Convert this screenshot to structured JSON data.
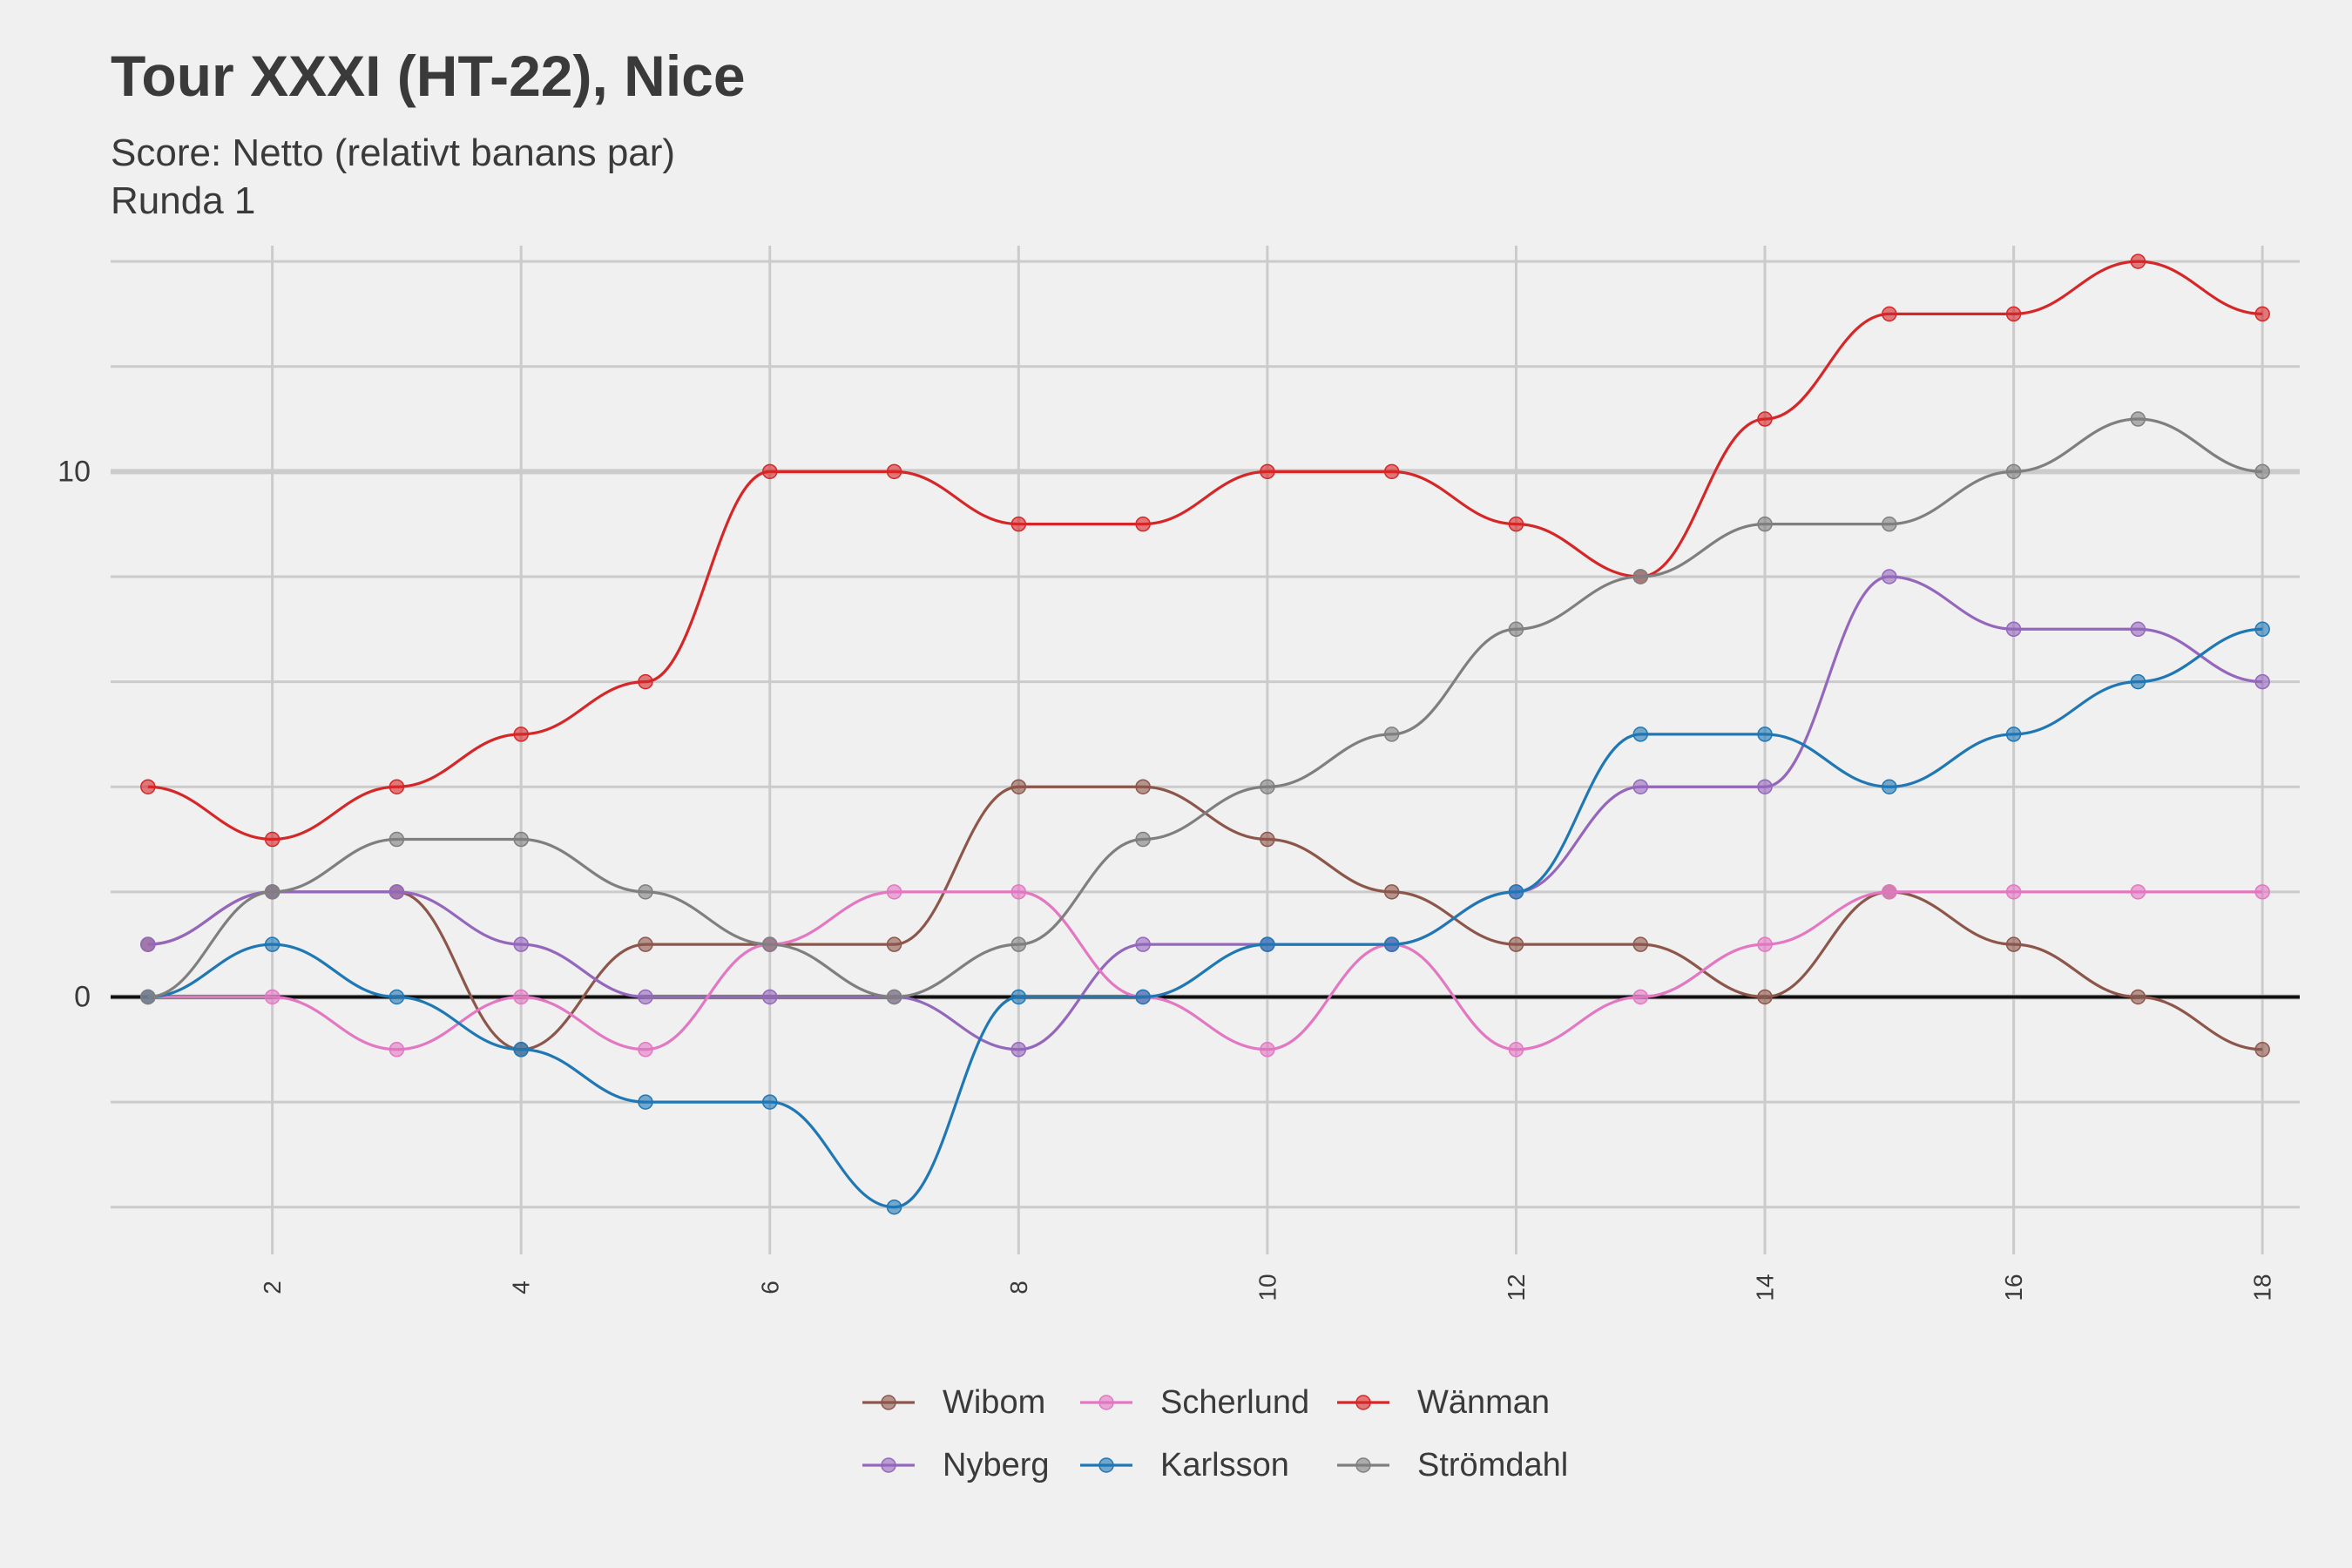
{
  "chart_data": {
    "type": "line",
    "title": "Tour XXXI (HT-22), Nice",
    "subtitle": "Score: Netto (relativt banans par)",
    "subtitle2": "Runda 1",
    "x": [
      1,
      2,
      3,
      4,
      5,
      6,
      7,
      8,
      9,
      10,
      11,
      12,
      13,
      14,
      15,
      16,
      17,
      18
    ],
    "xlim": [
      0.7,
      18.3
    ],
    "ylim": [
      -4.9,
      14.3
    ],
    "xticks": [
      2,
      4,
      6,
      8,
      10,
      12,
      14,
      16,
      18
    ],
    "yticks_labeled": [
      0,
      10
    ],
    "ygrid": [
      -4,
      -2,
      0,
      2,
      4,
      6,
      8,
      10,
      12,
      14
    ],
    "legend_position": "bottom",
    "series": [
      {
        "name": "Wibom",
        "color": "#8c564b",
        "values": [
          1,
          2,
          2,
          -1,
          1,
          1,
          1,
          4,
          4,
          3,
          2,
          1,
          1,
          0,
          2,
          1,
          0,
          -1
        ]
      },
      {
        "name": "Nyberg",
        "color": "#9467bd",
        "values": [
          1,
          2,
          2,
          1,
          0,
          0,
          0,
          -1,
          1,
          1,
          1,
          2,
          4,
          4,
          8,
          7,
          7,
          6
        ]
      },
      {
        "name": "Scherlund",
        "color": "#e377c2",
        "values": [
          0,
          0,
          -1,
          0,
          -1,
          1,
          2,
          2,
          0,
          -1,
          1,
          -1,
          0,
          1,
          2,
          2,
          2,
          2
        ]
      },
      {
        "name": "Karlsson",
        "color": "#1f77b4",
        "values": [
          0,
          1,
          0,
          -1,
          -2,
          -2,
          -4,
          0,
          0,
          1,
          1,
          2,
          5,
          5,
          4,
          5,
          6,
          7
        ]
      },
      {
        "name": "Wänman",
        "color": "#d62728",
        "values": [
          4,
          3,
          4,
          5,
          6,
          10,
          10,
          9,
          9,
          10,
          10,
          9,
          8,
          11,
          13,
          13,
          14,
          13
        ]
      },
      {
        "name": "Strömdahl",
        "color": "#7f7f7f",
        "values": [
          0,
          2,
          3,
          3,
          2,
          1,
          0,
          1,
          3,
          4,
          5,
          7,
          8,
          9,
          9,
          10,
          11,
          10
        ]
      }
    ]
  }
}
